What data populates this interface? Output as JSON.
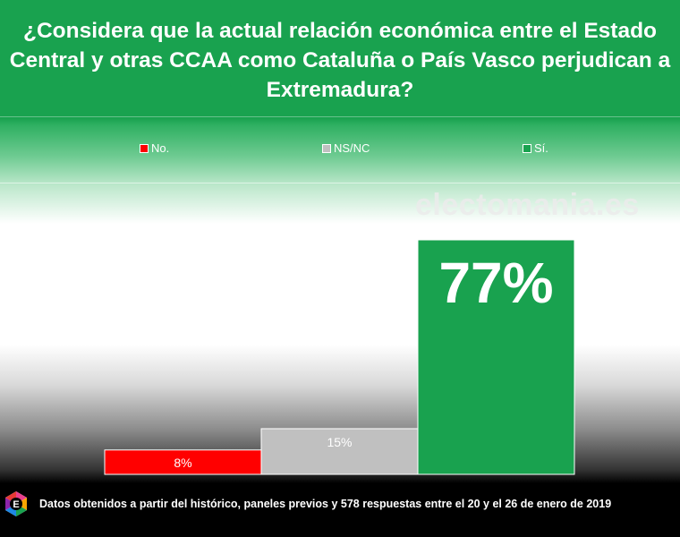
{
  "title_lines": [
    "¿Considera que la actual relación económica entre el Estado",
    "Central y otras CCAA como Cataluña o País Vasco perjudican a",
    "Extremadura?"
  ],
  "legend": [
    {
      "label": "No.",
      "color": "#ff0000"
    },
    {
      "label": "NS/NC",
      "color": "#c0c0c0"
    },
    {
      "label": "Sí.",
      "color": "#19a24f"
    }
  ],
  "watermark": "electomania.es",
  "footer": "Datos obtenidos a partir del histórico, paneles previos y 578 respuestas entre el 20 y el 26 de enero de 2019",
  "logo_letter": "E",
  "chart_data": {
    "type": "bar",
    "categories": [
      "No.",
      "NS/NC",
      "Sí."
    ],
    "values": [
      8,
      15,
      77
    ],
    "value_labels": [
      "8%",
      "15%",
      "77%"
    ],
    "colors": [
      "#ff0000",
      "#c0c0c0",
      "#19a24f"
    ],
    "ylim": [
      0,
      100
    ],
    "grid": false,
    "legend_position": "top"
  }
}
